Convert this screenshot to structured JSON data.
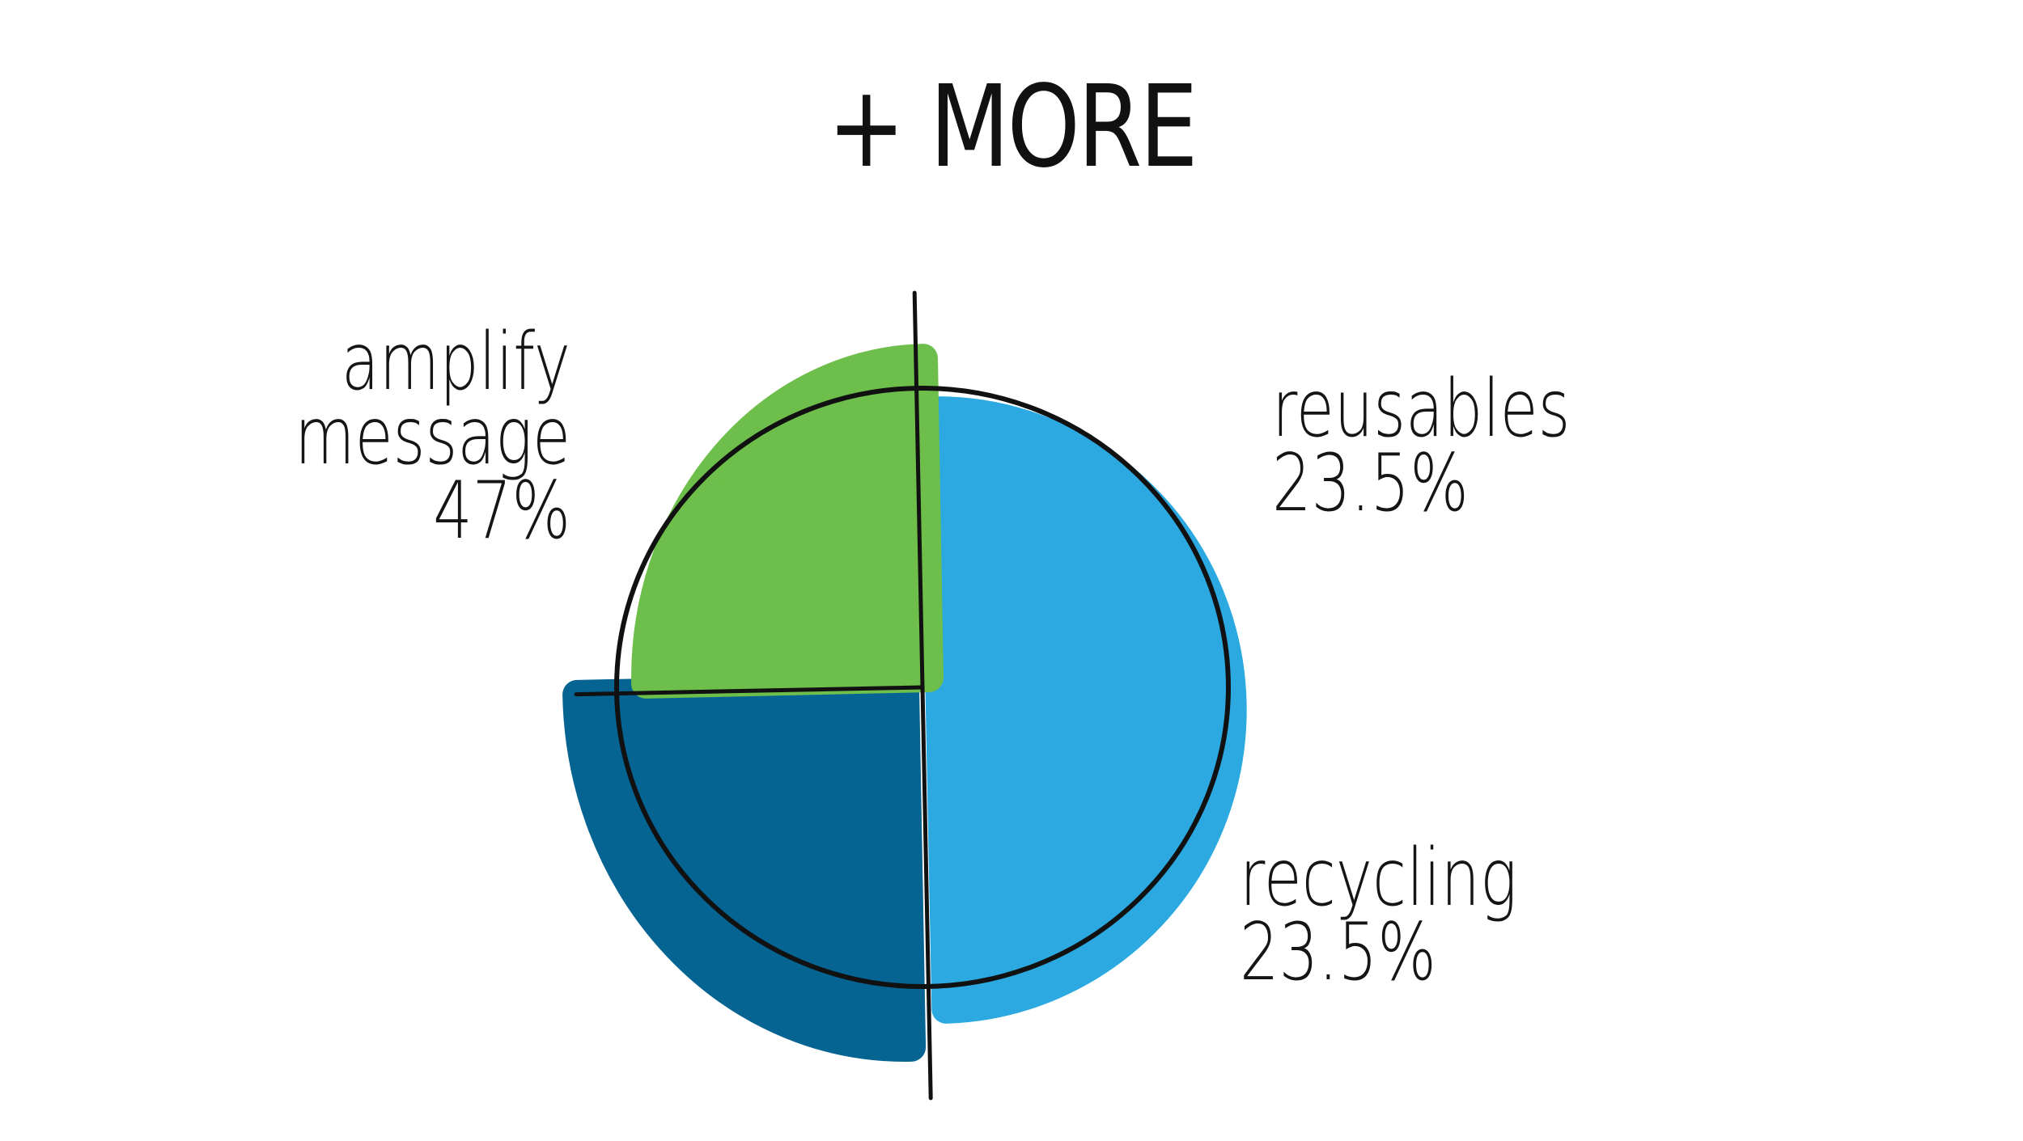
{
  "title": "+ MORE",
  "colors": {
    "amplify": "#2BA9E0",
    "reusables": "#056492",
    "recycling": "#6DBE4A",
    "outline": "#111111",
    "text": "#151515"
  },
  "chart_data": {
    "type": "pie",
    "title": "+ MORE",
    "slices": [
      {
        "label_lines": [
          "amplify",
          "message"
        ],
        "value": 47,
        "value_label": "47%",
        "color": "#2BA9E0"
      },
      {
        "label_lines": [
          "reusables"
        ],
        "value": 23.5,
        "value_label": "23.5%",
        "color": "#056492"
      },
      {
        "label_lines": [
          "recycling"
        ],
        "value": 23.5,
        "value_label": "23.5%",
        "color": "#6DBE4A"
      }
    ],
    "legend": "none",
    "grid": false
  }
}
